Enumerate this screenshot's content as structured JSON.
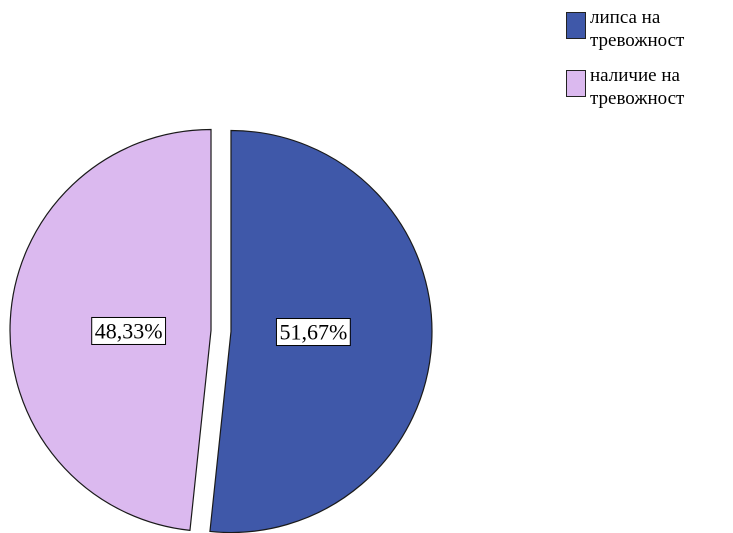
{
  "chart_data": {
    "type": "pie",
    "title": "",
    "slices": [
      {
        "label": "липса на тревожност",
        "value": 51.67,
        "value_label": "51,67%",
        "color": "#3F58A9"
      },
      {
        "label": "наличие на тревожност",
        "value": 48.33,
        "value_label": "48,33%",
        "color": "#DBB9EF"
      }
    ],
    "legend_position": "top-right",
    "exploded": true
  }
}
